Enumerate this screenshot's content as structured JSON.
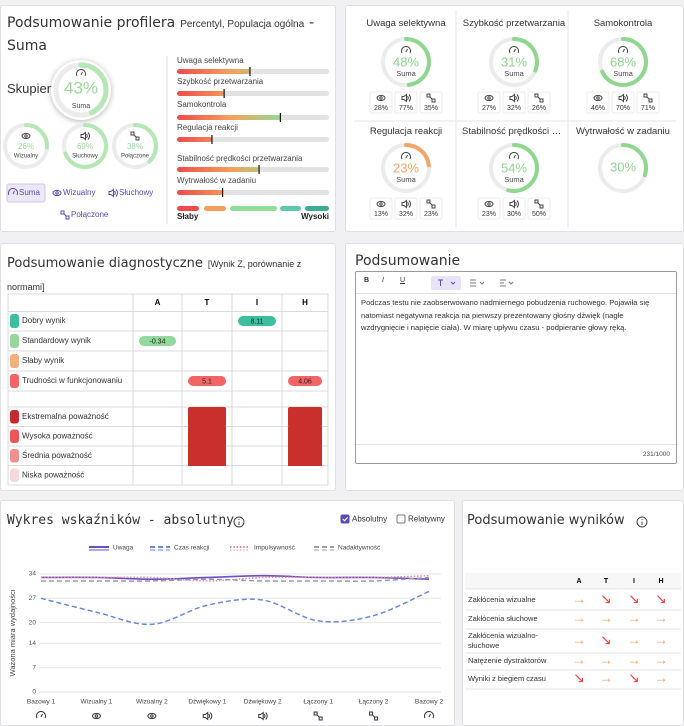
{
  "profiler": {
    "title": "Podsumowanie profilera",
    "subtitle": "Percentyl, Populacja ogólna",
    "suffix": "- Suma",
    "focus_label": "Skupienie",
    "main": {
      "value": 43,
      "label": "43%",
      "name": "Suma"
    },
    "modalities": [
      {
        "value": 26,
        "label": "26%",
        "name": "Wizualny"
      },
      {
        "value": 69,
        "label": "69%",
        "name": "Słuchowy"
      },
      {
        "value": 38,
        "label": "38%",
        "name": "Połączone"
      }
    ],
    "tabs": [
      "Suma",
      "Wizualny",
      "Słuchowy",
      "Połączone"
    ],
    "scale_low": "Słaby",
    "scale_high": "Wysoki"
  },
  "gauges": [
    {
      "title": "Uwaga selektywna",
      "value": 48,
      "label": "48%",
      "sub": "Suma",
      "color": "#8fd68f",
      "details": [
        "28%",
        "77%",
        "35%"
      ]
    },
    {
      "title": "Szybkość przetwarzania",
      "value": 31,
      "label": "31%",
      "sub": "Suma",
      "color": "#8fd68f",
      "details": [
        "27%",
        "32%",
        "26%"
      ]
    },
    {
      "title": "Samokontrola",
      "value": 68,
      "label": "68%",
      "sub": "Suma",
      "color": "#8fd68f",
      "details": [
        "46%",
        "70%",
        "71%"
      ]
    },
    {
      "title": "Regulacja reakcji",
      "value": 23,
      "label": "23%",
      "sub": "Suma",
      "color": "#f4a46a",
      "details": [
        "13%",
        "32%",
        "23%"
      ]
    },
    {
      "title": "Stabilność prędkości przetwarzania",
      "value": 54,
      "label": "54%",
      "sub": "Suma",
      "color": "#8fd68f",
      "details": [
        "23%",
        "30%",
        "50%"
      ]
    },
    {
      "title": "Wytrwałość w zadaniu",
      "value": 30,
      "label": "30%",
      "color": "#8fd68f"
    }
  ],
  "diagnostic": {
    "title": "Podsumowanie diagnostyczne",
    "subtitle": "[Wynik Z, porównanie z normami]",
    "columns": [
      "A",
      "T",
      "I",
      "H"
    ],
    "rows": [
      {
        "label": "Dobry wynik",
        "color": "#3dbf9f",
        "cells": [
          null,
          null,
          8.11,
          null
        ]
      },
      {
        "label": "Standardowy wynik",
        "color": "#92d99b",
        "cells": [
          -0.34,
          null,
          null,
          null
        ]
      },
      {
        "label": "Słaby wynik",
        "color": "#f5b07a",
        "cells": [
          null,
          null,
          null,
          null
        ]
      },
      {
        "label": "Trudności w funkcjonowaniu",
        "color": "#f26565",
        "cells": [
          null,
          5.1,
          null,
          4.06
        ]
      }
    ],
    "severity": [
      {
        "label": "Ekstremalna poważność",
        "color": "#c42a2a",
        "cells": [
          false,
          true,
          false,
          true
        ]
      },
      {
        "label": "Wysoka poważność",
        "color": "#ee5555",
        "cells": [
          false,
          true,
          false,
          true
        ]
      },
      {
        "label": "Średnia poważność",
        "color": "#f28f8f",
        "cells": [
          false,
          true,
          false,
          true
        ]
      },
      {
        "label": "Niska poważność",
        "color": "#f6dada",
        "cells": [
          false,
          false,
          false,
          false
        ]
      }
    ]
  },
  "summary": {
    "title": "Podsumowanie",
    "toolbar": [
      "B",
      "I",
      "U"
    ],
    "text": "Podczas testu nie zaobserwowano nadmiernego pobudzenia ruchowego. Pojawiła się natomiast negatywna reakcja na pierwszy prezentowany głośny dźwięk (nagłe wzdrygnięcie i napięcie ciała). W miarę upływu czasu - podpieranie głowy ręką.",
    "counter": "231/1000"
  },
  "chart_data": {
    "type": "line",
    "title": "Wykres wskaźników - absolutny",
    "toggles": [
      {
        "label": "Absolutny",
        "checked": true
      },
      {
        "label": "Relatywny",
        "checked": false
      }
    ],
    "ylabel": "Ważona miara wydajności",
    "categories": [
      "Bazowy 1",
      "Wizualny 1",
      "Wizualny 2",
      "Dźwiękowy 1",
      "Dźwiękowy 2",
      "Łączony 1",
      "Łączony 2",
      "Bazowy 2"
    ],
    "series": [
      {
        "name": "Uwaga",
        "color": "#6b4fc4",
        "dash": "solid",
        "values": [
          33,
          33,
          32.5,
          33,
          33.5,
          33,
          33,
          32.5
        ]
      },
      {
        "name": "Czas reakcji",
        "color": "#6a8ad8",
        "dash": "dashed",
        "values": [
          27,
          23,
          19.5,
          25,
          26.5,
          20.5,
          22,
          29
        ]
      },
      {
        "name": "Impulsywność",
        "color": "#e88a9a",
        "dash": "dotted",
        "values": [
          33,
          33,
          33,
          32,
          33,
          33,
          33,
          33.5
        ]
      },
      {
        "name": "Nadaktywność",
        "color": "#9a9ab2",
        "dash": "dashed",
        "values": [
          32,
          32,
          32,
          32.5,
          32,
          32,
          32,
          33
        ]
      }
    ],
    "ylim": [
      0,
      34
    ],
    "yticks": [
      0,
      7,
      14,
      20,
      27,
      34
    ],
    "grid": true
  },
  "results": {
    "title": "Podsumowanie wyników",
    "columns": [
      "A",
      "T",
      "I",
      "H"
    ],
    "colors": {
      "→": "#f4a46a",
      "↘": "#e84a4a"
    },
    "rows": [
      {
        "label": "Zakłócenia wizualne",
        "cells": [
          "→",
          "↘",
          "↘",
          "↘"
        ]
      },
      {
        "label": "Zakłócenia słuchowe",
        "cells": [
          "→",
          "→",
          "→",
          "→"
        ]
      },
      {
        "label": "Zakłócenia wizualno-słuchowe",
        "cells": [
          "→",
          "↘",
          "→",
          "→"
        ]
      },
      {
        "label": "Natężenie dystraktorów",
        "cells": [
          "→",
          "→",
          "→",
          "→"
        ]
      },
      {
        "label": "Wyniki z biegiem czasu",
        "cells": [
          "↘",
          "→",
          "↘",
          "→"
        ]
      }
    ]
  }
}
